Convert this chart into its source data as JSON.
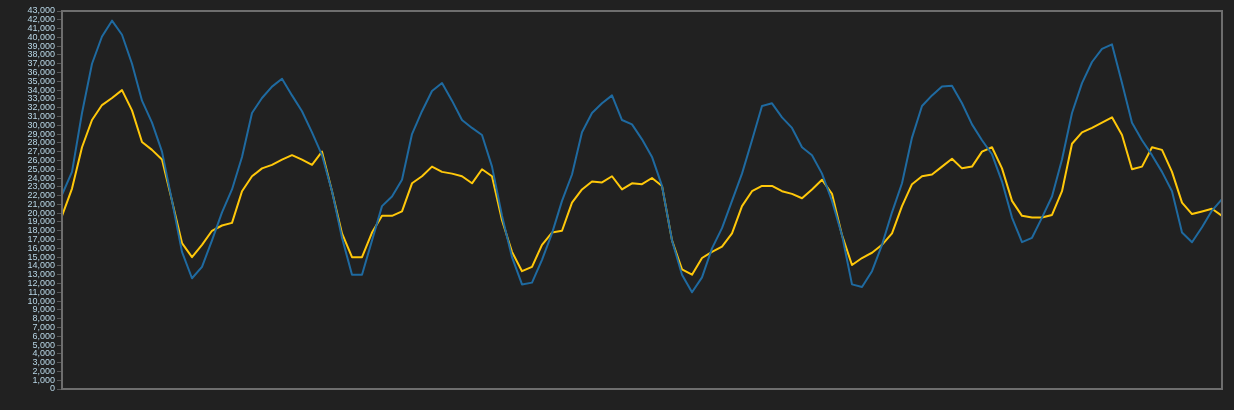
{
  "chart_data": {
    "type": "line",
    "marker": "none",
    "categories": [
      null,
      null,
      null,
      null,
      null,
      null,
      null,
      null,
      null,
      null,
      null,
      null,
      null,
      null,
      null,
      null,
      null,
      null,
      null,
      null,
      null,
      null,
      null,
      null,
      null,
      null,
      null,
      null,
      null,
      null,
      null,
      null,
      null,
      null,
      null,
      null,
      null,
      null,
      null,
      null,
      null,
      null,
      null,
      null,
      null,
      null,
      null,
      null,
      null,
      null,
      null,
      null,
      null,
      null,
      null,
      null,
      null,
      null,
      null,
      null,
      null,
      null,
      null,
      null,
      null,
      null,
      null,
      null,
      null,
      null,
      null,
      null,
      null,
      null,
      null,
      null,
      null,
      null,
      null,
      null,
      null,
      null,
      null,
      null,
      null,
      null,
      null,
      null,
      null,
      null,
      null,
      null,
      null,
      null,
      null,
      null,
      null,
      null,
      null,
      null,
      null,
      null,
      null,
      null,
      null,
      null,
      null,
      null,
      null,
      null,
      null,
      null,
      null,
      null,
      null,
      null,
      null
    ],
    "ylim": [
      0,
      43000
    ],
    "yticks": [
      0,
      {
        "value": 1000,
        "label": "1,000"
      },
      {
        "value": 2000,
        "label": "2,000"
      },
      {
        "value": 3000,
        "label": "3,000"
      },
      {
        "value": 4000,
        "label": "4,000"
      },
      {
        "value": 5000,
        "label": "5,000"
      },
      {
        "value": 6000,
        "label": "6,000"
      },
      {
        "value": 7000,
        "label": "7,000"
      },
      {
        "value": 8000,
        "label": "8,000"
      },
      {
        "value": 9000,
        "label": "9,000"
      },
      {
        "value": 10000,
        "label": "10,000"
      },
      {
        "value": 11000,
        "label": "11,000"
      },
      {
        "value": 12000,
        "label": "12,000"
      },
      {
        "value": 13000,
        "label": "13,000"
      },
      {
        "value": 14000,
        "label": "14,000"
      },
      {
        "value": 15000,
        "label": "15,000"
      },
      {
        "value": 16000,
        "label": "16,000"
      },
      {
        "value": 17000,
        "label": "17,000"
      },
      {
        "value": 18000,
        "label": "18,000"
      },
      {
        "value": 19000,
        "label": "19,000"
      },
      {
        "value": 20000,
        "label": "20,000"
      },
      {
        "value": 21000,
        "label": "21,000"
      },
      {
        "value": 22000,
        "label": "22,000"
      },
      {
        "value": 23000,
        "label": "23,000"
      },
      {
        "value": 24000,
        "label": "24,000"
      },
      {
        "value": 25000,
        "label": "25,000"
      },
      {
        "value": 26000,
        "label": "26,000"
      },
      {
        "value": 27000,
        "label": "27,000"
      },
      {
        "value": 28000,
        "label": "28,000"
      },
      {
        "value": 29000,
        "label": "29,000"
      },
      {
        "value": 30000,
        "label": "30,000"
      },
      {
        "value": 31000,
        "label": "31,000"
      },
      {
        "value": 32000,
        "label": "32,000"
      },
      {
        "value": 33000,
        "label": "33,000"
      },
      {
        "value": 34000,
        "label": "34,000"
      },
      {
        "value": 35000,
        "label": "35,000"
      },
      {
        "value": 36000,
        "label": "36,000"
      },
      {
        "value": 37000,
        "label": "37,000"
      },
      {
        "value": 38000,
        "label": "38,000"
      },
      {
        "value": 39000,
        "label": "39,000"
      },
      {
        "value": 40000,
        "label": "40,000"
      },
      {
        "value": 41000,
        "label": "41,000"
      },
      {
        "value": 42000,
        "label": "42,000"
      },
      {
        "value": 43000,
        "label": "43,000"
      }
    ],
    "series": [
      {
        "color": "#1f6aa0",
        "values": [
          22100,
          24700,
          31400,
          37000,
          40100,
          41900,
          40300,
          37000,
          32800,
          30300,
          27000,
          21400,
          15600,
          12600,
          13900,
          16900,
          20100,
          22700,
          26400,
          31400,
          33100,
          34400,
          35300,
          33400,
          31600,
          29200,
          26600,
          22500,
          17200,
          13000,
          13000,
          16900,
          20800,
          21900,
          23800,
          29000,
          31600,
          33900,
          34800,
          32800,
          30600,
          29700,
          28900,
          25300,
          19700,
          15000,
          11900,
          12100,
          14700,
          17700,
          21400,
          24400,
          29200,
          31400,
          32500,
          33400,
          30600,
          30100,
          28400,
          26400,
          23100,
          16900,
          13000,
          11000,
          12700,
          16000,
          18300,
          21400,
          24500,
          28300,
          32200,
          32500,
          30900,
          29700,
          27500,
          26600,
          24500,
          21400,
          17500,
          11900,
          11600,
          13400,
          16400,
          20100,
          23400,
          28600,
          32200,
          33400,
          34400,
          34500,
          32500,
          30100,
          28300,
          26700,
          23600,
          19500,
          16700,
          17200,
          19500,
          21900,
          26100,
          31400,
          34800,
          37200,
          38700,
          39200,
          34800,
          30300,
          28300,
          26600,
          24700,
          22500,
          17800,
          16700,
          18400,
          20300,
          21600
        ]
      },
      {
        "color": "#ffc80a",
        "values": [
          19700,
          22800,
          27500,
          30600,
          32300,
          33100,
          34000,
          31700,
          28100,
          27200,
          26100,
          21400,
          16600,
          15000,
          16400,
          18000,
          18600,
          18900,
          22500,
          24200,
          25100,
          25500,
          26100,
          26600,
          26100,
          25500,
          27000,
          22500,
          17700,
          15000,
          15000,
          17800,
          19700,
          19700,
          20200,
          23400,
          24200,
          25300,
          24700,
          24500,
          24200,
          23400,
          25000,
          24200,
          19200,
          15600,
          13400,
          13900,
          16400,
          17800,
          18000,
          21200,
          22700,
          23600,
          23500,
          24200,
          22700,
          23400,
          23300,
          24000,
          23100,
          16900,
          13600,
          13000,
          14900,
          15600,
          16200,
          17700,
          20800,
          22500,
          23100,
          23100,
          22500,
          22200,
          21700,
          22700,
          23800,
          22200,
          17500,
          14100,
          14900,
          15500,
          16400,
          17700,
          20800,
          23300,
          24200,
          24400,
          25300,
          26200,
          25100,
          25300,
          27000,
          27500,
          25100,
          21400,
          19700,
          19500,
          19500,
          19800,
          22500,
          27900,
          29200,
          29700,
          30300,
          30900,
          28900,
          25000,
          25300,
          27500,
          27200,
          24700,
          21200,
          19900,
          20200,
          20500,
          19700
        ]
      }
    ]
  }
}
